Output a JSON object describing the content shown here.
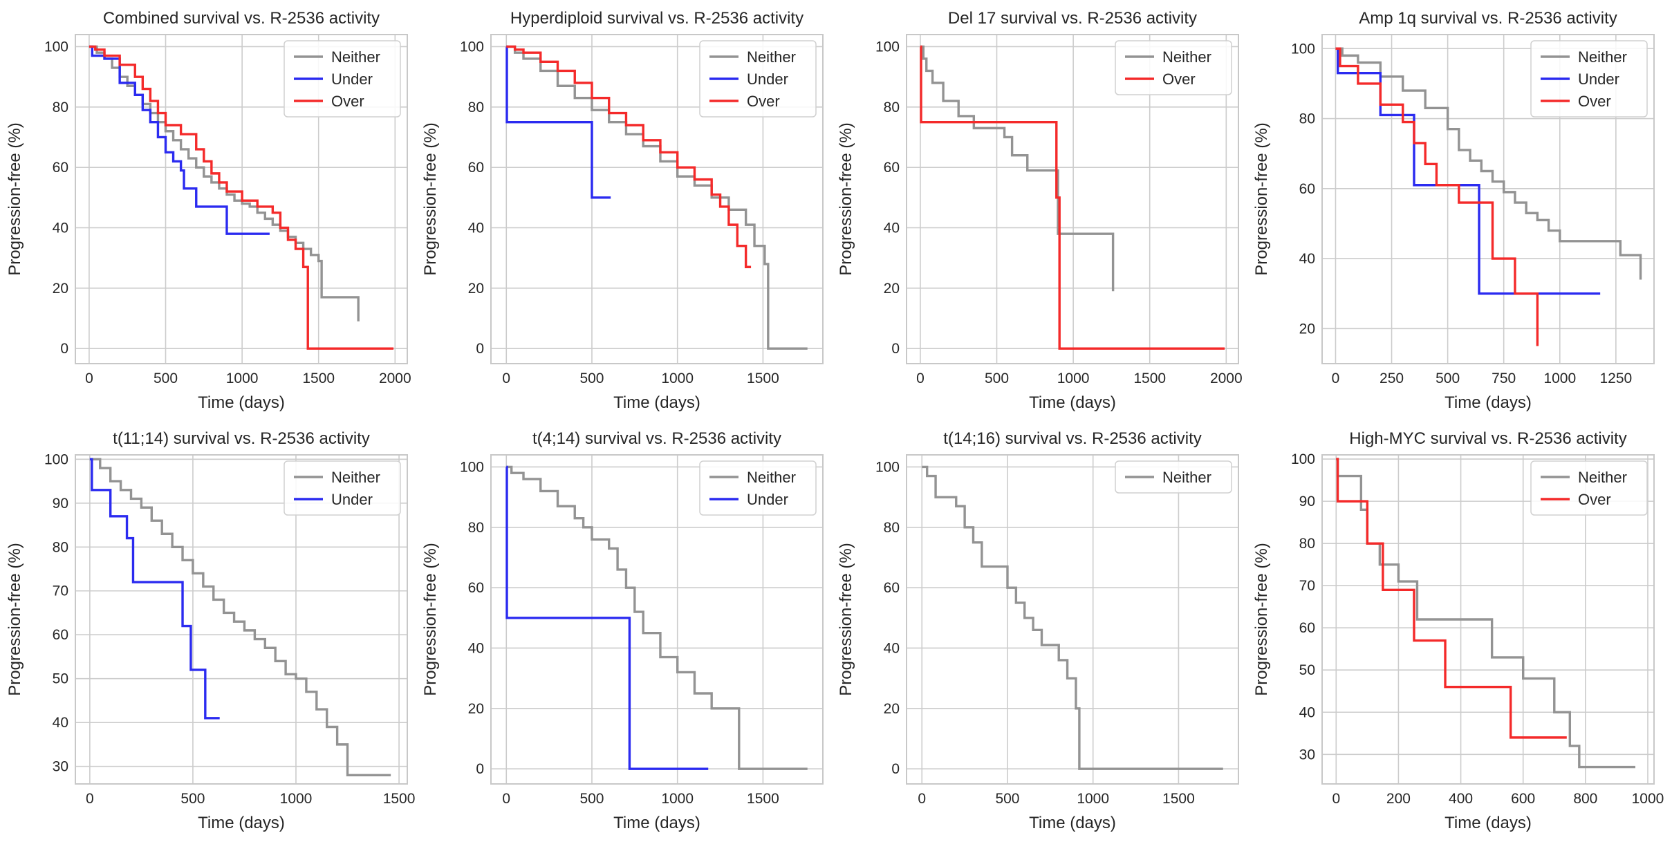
{
  "colors": {
    "Neither": "#939393",
    "Under": "#2b2bf0",
    "Over": "#f42a2a"
  },
  "chart_data": [
    {
      "type": "line",
      "title": "Combined survival vs. R-2536 activity",
      "xlabel": "Time (days)",
      "ylabel": "Progression-free (%)",
      "xlim": [
        -90,
        2080
      ],
      "ylim": [
        -5,
        104
      ],
      "xticks": [
        0,
        500,
        1000,
        1500,
        2000
      ],
      "yticks": [
        0,
        20,
        40,
        60,
        80,
        100
      ],
      "legend_position": "top-right",
      "series": [
        {
          "name": "Neither",
          "x": [
            0,
            50,
            100,
            150,
            200,
            250,
            300,
            350,
            400,
            450,
            500,
            550,
            600,
            650,
            700,
            750,
            800,
            850,
            900,
            950,
            1000,
            1050,
            1100,
            1150,
            1200,
            1250,
            1300,
            1350,
            1400,
            1450,
            1500,
            1520,
            1760,
            1760
          ],
          "y": [
            100,
            98,
            96,
            93,
            90,
            87,
            84,
            81,
            78,
            75,
            72,
            69,
            66,
            63,
            60,
            57,
            55,
            53,
            51,
            49,
            48,
            47,
            45,
            43,
            41,
            39,
            37,
            35,
            33,
            31,
            29,
            17,
            17,
            9
          ]
        },
        {
          "name": "Under",
          "x": [
            0,
            20,
            100,
            200,
            300,
            350,
            400,
            450,
            500,
            550,
            600,
            620,
            700,
            900,
            1180
          ],
          "y": [
            100,
            97,
            96,
            88,
            84,
            79,
            75,
            70,
            65,
            62,
            59,
            53,
            47,
            38,
            38
          ]
        },
        {
          "name": "Over",
          "x": [
            0,
            40,
            100,
            200,
            300,
            350,
            400,
            450,
            500,
            600,
            700,
            750,
            800,
            850,
            900,
            1000,
            1100,
            1200,
            1250,
            1300,
            1350,
            1400,
            1430,
            1990
          ],
          "y": [
            100,
            99,
            97,
            94,
            90,
            86,
            82,
            78,
            74,
            71,
            66,
            62,
            58,
            55,
            52,
            49,
            47,
            45,
            40,
            36,
            33,
            27,
            0,
            0
          ]
        }
      ]
    },
    {
      "type": "line",
      "title": "Hyperdiploid survival vs. R-2536 activity",
      "xlabel": "Time (days)",
      "ylabel": "Progression-free (%)",
      "xlim": [
        -90,
        1850
      ],
      "ylim": [
        -5,
        104
      ],
      "xticks": [
        0,
        500,
        1000,
        1500
      ],
      "yticks": [
        0,
        20,
        40,
        60,
        80,
        100
      ],
      "legend_position": "top-right",
      "series": [
        {
          "name": "Neither",
          "x": [
            0,
            50,
            100,
            200,
            300,
            400,
            500,
            600,
            700,
            800,
            900,
            1000,
            1100,
            1200,
            1300,
            1400,
            1450,
            1510,
            1530,
            1760
          ],
          "y": [
            100,
            98,
            96,
            92,
            87,
            83,
            79,
            75,
            71,
            67,
            62,
            57,
            54,
            50,
            46,
            41,
            34,
            28,
            0,
            0
          ]
        },
        {
          "name": "Under",
          "x": [
            0,
            3,
            500,
            500,
            610
          ],
          "y": [
            100,
            75,
            75,
            50,
            50
          ]
        },
        {
          "name": "Over",
          "x": [
            0,
            50,
            100,
            200,
            300,
            400,
            500,
            600,
            700,
            800,
            900,
            1000,
            1100,
            1200,
            1250,
            1300,
            1350,
            1400,
            1430
          ],
          "y": [
            100,
            99,
            98,
            95,
            92,
            88,
            83,
            78,
            74,
            69,
            65,
            60,
            56,
            51,
            47,
            41,
            34,
            27,
            27
          ]
        }
      ]
    },
    {
      "type": "line",
      "title": "Del 17 survival vs. R-2536 activity",
      "xlabel": "Time (days)",
      "ylabel": "Progression-free (%)",
      "xlim": [
        -90,
        2080
      ],
      "ylim": [
        -5,
        104
      ],
      "xticks": [
        0,
        500,
        1000,
        1500,
        2000
      ],
      "yticks": [
        0,
        20,
        40,
        60,
        80,
        100
      ],
      "legend_position": "top-right",
      "series": [
        {
          "name": "Neither",
          "x": [
            0,
            20,
            40,
            80,
            150,
            250,
            350,
            550,
            600,
            700,
            900,
            900,
            1260
          ],
          "y": [
            100,
            96,
            92,
            88,
            82,
            77,
            73,
            70,
            64,
            59,
            49,
            38,
            19
          ]
        },
        {
          "name": "Over",
          "x": [
            0,
            5,
            890,
            890,
            910,
            1990
          ],
          "y": [
            100,
            75,
            75,
            50,
            0,
            0
          ]
        }
      ]
    },
    {
      "type": "line",
      "title": "Amp 1q survival vs. R-2536 activity",
      "xlabel": "Time (days)",
      "ylabel": "Progression-free (%)",
      "xlim": [
        -60,
        1420
      ],
      "ylim": [
        10,
        104
      ],
      "xticks": [
        0,
        250,
        500,
        750,
        1000,
        1250
      ],
      "yticks": [
        20,
        40,
        60,
        80,
        100
      ],
      "legend_position": "top-right",
      "series": [
        {
          "name": "Neither",
          "x": [
            0,
            30,
            100,
            200,
            300,
            400,
            500,
            550,
            600,
            650,
            700,
            750,
            800,
            850,
            900,
            950,
            1000,
            1250,
            1270,
            1360
          ],
          "y": [
            100,
            98,
            96,
            92,
            88,
            83,
            77,
            71,
            68,
            65,
            62,
            59,
            56,
            53,
            51,
            48,
            45,
            45,
            41,
            34
          ]
        },
        {
          "name": "Under",
          "x": [
            0,
            10,
            200,
            200,
            350,
            350,
            640,
            640,
            1180
          ],
          "y": [
            100,
            93,
            87,
            81,
            81,
            61,
            61,
            30,
            30
          ]
        },
        {
          "name": "Over",
          "x": [
            0,
            20,
            100,
            200,
            300,
            350,
            400,
            450,
            550,
            700,
            800,
            800,
            900
          ],
          "y": [
            100,
            95,
            90,
            84,
            79,
            73,
            67,
            61,
            56,
            40,
            40,
            30,
            15
          ]
        }
      ]
    },
    {
      "type": "line",
      "title": "t(11;14) survival vs. R-2536 activity",
      "xlabel": "Time (days)",
      "ylabel": "Progression-free (%)",
      "xlim": [
        -70,
        1540
      ],
      "ylim": [
        26,
        101
      ],
      "xticks": [
        0,
        500,
        1000,
        1500
      ],
      "yticks": [
        30,
        40,
        50,
        60,
        70,
        80,
        90,
        100
      ],
      "legend_position": "top-right",
      "series": [
        {
          "name": "Neither",
          "x": [
            0,
            50,
            100,
            150,
            200,
            250,
            300,
            350,
            400,
            450,
            500,
            550,
            600,
            650,
            700,
            750,
            800,
            850,
            900,
            950,
            1000,
            1050,
            1100,
            1150,
            1200,
            1250,
            1460
          ],
          "y": [
            100,
            98,
            95,
            93,
            91,
            89,
            86,
            83,
            80,
            77,
            74,
            71,
            68,
            65,
            63,
            61,
            59,
            57,
            54,
            51,
            50,
            47,
            43,
            39,
            35,
            28,
            28
          ]
        },
        {
          "name": "Under",
          "x": [
            0,
            10,
            100,
            180,
            210,
            450,
            450,
            490,
            560,
            560,
            630
          ],
          "y": [
            100,
            93,
            87,
            82,
            72,
            72,
            62,
            52,
            52,
            41,
            41
          ]
        }
      ]
    },
    {
      "type": "line",
      "title": "t(4;14) survival vs. R-2536 activity",
      "xlabel": "Time (days)",
      "ylabel": "Progression-free (%)",
      "xlim": [
        -90,
        1850
      ],
      "ylim": [
        -5,
        104
      ],
      "xticks": [
        0,
        500,
        1000,
        1500
      ],
      "yticks": [
        0,
        20,
        40,
        60,
        80,
        100
      ],
      "legend_position": "top-right",
      "series": [
        {
          "name": "Neither",
          "x": [
            0,
            30,
            100,
            200,
            300,
            400,
            450,
            500,
            600,
            650,
            700,
            750,
            800,
            900,
            1000,
            1100,
            1200,
            1350,
            1360,
            1760
          ],
          "y": [
            100,
            98,
            96,
            92,
            87,
            83,
            80,
            76,
            73,
            66,
            60,
            52,
            45,
            37,
            32,
            25,
            20,
            20,
            0,
            0
          ]
        },
        {
          "name": "Under",
          "x": [
            0,
            3,
            720,
            720,
            1180
          ],
          "y": [
            100,
            50,
            50,
            0,
            0
          ]
        }
      ]
    },
    {
      "type": "line",
      "title": "t(14;16) survival vs. R-2536 activity",
      "xlabel": "Time (days)",
      "ylabel": "Progression-free (%)",
      "xlim": [
        -90,
        1850
      ],
      "ylim": [
        -5,
        104
      ],
      "xticks": [
        0,
        500,
        1000,
        1500
      ],
      "yticks": [
        0,
        20,
        40,
        60,
        80,
        100
      ],
      "legend_position": "top-right",
      "series": [
        {
          "name": "Neither",
          "x": [
            0,
            30,
            80,
            200,
            250,
            300,
            350,
            400,
            500,
            550,
            600,
            650,
            700,
            800,
            850,
            900,
            920,
            1760
          ],
          "y": [
            100,
            97,
            90,
            87,
            80,
            75,
            67,
            67,
            60,
            55,
            50,
            46,
            41,
            36,
            30,
            20,
            0,
            0
          ]
        }
      ]
    },
    {
      "type": "line",
      "title": "High-MYC survival vs. R-2536 activity",
      "xlabel": "Time (days)",
      "ylabel": "Progression-free (%)",
      "xlim": [
        -45,
        1020
      ],
      "ylim": [
        23,
        101
      ],
      "xticks": [
        0,
        200,
        400,
        600,
        800,
        1000
      ],
      "yticks": [
        30,
        40,
        50,
        60,
        70,
        80,
        90,
        100
      ],
      "legend_position": "top-right",
      "series": [
        {
          "name": "Neither",
          "x": [
            0,
            5,
            80,
            100,
            140,
            200,
            260,
            400,
            500,
            600,
            700,
            750,
            780,
            960
          ],
          "y": [
            100,
            96,
            88,
            80,
            75,
            71,
            62,
            62,
            53,
            48,
            40,
            32,
            27,
            27
          ]
        },
        {
          "name": "Over",
          "x": [
            0,
            5,
            100,
            150,
            250,
            350,
            560,
            740
          ],
          "y": [
            100,
            90,
            80,
            69,
            57,
            46,
            34,
            34
          ]
        }
      ]
    }
  ]
}
